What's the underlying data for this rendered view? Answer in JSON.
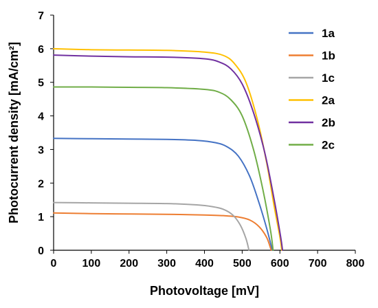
{
  "chart_data": {
    "type": "line",
    "title": "",
    "xlabel": "Photovoltage [mV]",
    "ylabel": "Photocurrent density [mA/cm²]",
    "xlim": [
      0,
      800
    ],
    "ylim": [
      0,
      7
    ],
    "xticks": [
      "0",
      "100",
      "200",
      "300",
      "400",
      "500",
      "600",
      "700",
      "800"
    ],
    "yticks": [
      "0",
      "1",
      "2",
      "3",
      "4",
      "5",
      "6",
      "7"
    ],
    "grid": false,
    "legend_position": "top-right",
    "series": [
      {
        "name": "1a",
        "color": "#4472C4",
        "x": [
          0,
          100,
          200,
          300,
          380,
          430,
          460,
          490,
          520,
          545,
          565,
          580
        ],
        "y": [
          3.33,
          3.32,
          3.31,
          3.3,
          3.27,
          3.2,
          3.08,
          2.8,
          2.2,
          1.4,
          0.65,
          0
        ]
      },
      {
        "name": "1b",
        "color": "#ED7D31",
        "x": [
          0,
          100,
          200,
          300,
          400,
          450,
          490,
          520,
          545,
          565,
          577
        ],
        "y": [
          1.11,
          1.09,
          1.08,
          1.07,
          1.05,
          1.03,
          0.99,
          0.9,
          0.7,
          0.38,
          0
        ]
      },
      {
        "name": "1c",
        "color": "#A5A5A5",
        "x": [
          0,
          100,
          200,
          300,
          380,
          420,
          450,
          475,
          495,
          510,
          518
        ],
        "y": [
          1.42,
          1.41,
          1.4,
          1.39,
          1.35,
          1.3,
          1.22,
          1.05,
          0.75,
          0.35,
          0
        ]
      },
      {
        "name": "2a",
        "color": "#FFC000",
        "x": [
          0,
          100,
          200,
          300,
          400,
          450,
          480,
          510,
          540,
          565,
          585,
          600,
          605
        ],
        "y": [
          6.0,
          5.97,
          5.96,
          5.95,
          5.9,
          5.8,
          5.55,
          5.0,
          3.9,
          2.6,
          1.3,
          0.4,
          0
        ]
      },
      {
        "name": "2b",
        "color": "#7030A0",
        "x": [
          0,
          100,
          200,
          300,
          400,
          440,
          470,
          500,
          530,
          560,
          585,
          602,
          607
        ],
        "y": [
          5.81,
          5.78,
          5.76,
          5.75,
          5.7,
          5.6,
          5.4,
          4.95,
          4.1,
          2.9,
          1.5,
          0.4,
          0
        ]
      },
      {
        "name": "2c",
        "color": "#70AD47",
        "x": [
          0,
          100,
          200,
          300,
          400,
          440,
          470,
          500,
          530,
          555,
          575,
          582
        ],
        "y": [
          4.86,
          4.86,
          4.85,
          4.84,
          4.79,
          4.7,
          4.48,
          4.0,
          3.0,
          1.8,
          0.6,
          0
        ]
      }
    ]
  }
}
